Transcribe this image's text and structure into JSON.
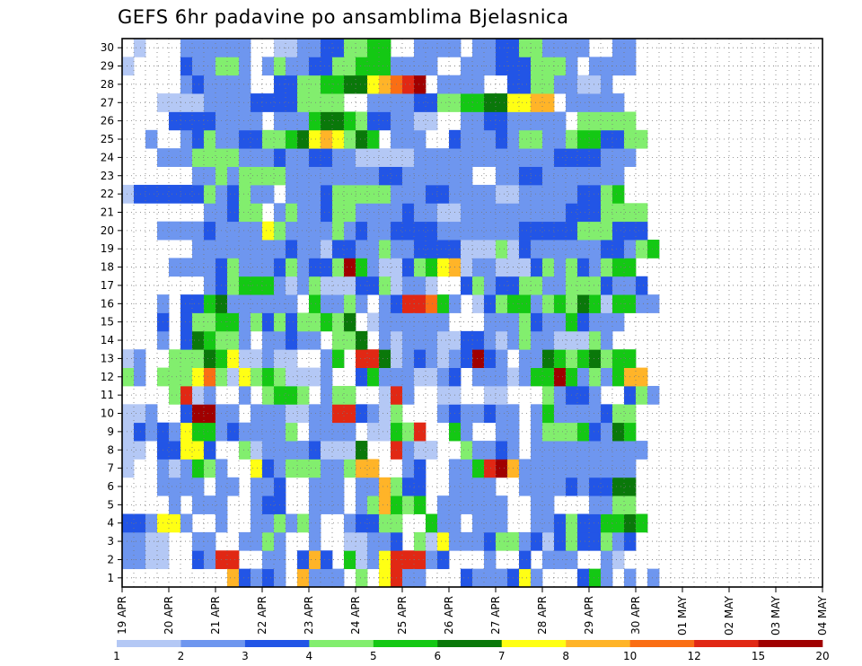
{
  "chart_data": {
    "type": "heatmap",
    "title": "GEFS 6hr padavine po ansamblima Bjelasnica",
    "xlabel": "",
    "ylabel": "",
    "x_tick_labels": [
      "19 APR",
      "20 APR",
      "21 APR",
      "22 APR",
      "23 APR",
      "24 APR",
      "25 APR",
      "26 APR",
      "27 APR",
      "28 APR",
      "29 APR",
      "30 APR",
      "01 MAY",
      "02 MAY",
      "03 MAY",
      "04 MAY"
    ],
    "y_tick_labels": [
      "1",
      "2",
      "3",
      "4",
      "5",
      "6",
      "7",
      "8",
      "9",
      "10",
      "11",
      "12",
      "13",
      "14",
      "15",
      "16",
      "17",
      "18",
      "19",
      "20",
      "21",
      "22",
      "23",
      "24",
      "25",
      "26",
      "27",
      "28",
      "29",
      "30"
    ],
    "grid": "dotted",
    "time_steps_per_day": 4,
    "days": 15,
    "members": 30,
    "color_levels": {
      "bounds": [
        1,
        2,
        3,
        4,
        5,
        6,
        7,
        8,
        10,
        12,
        15,
        20
      ],
      "labels": [
        "1",
        "2",
        "3",
        "4",
        "5",
        "6",
        "7",
        "8",
        "10",
        "12",
        "15",
        "20"
      ],
      "colors": [
        "#b4c8f5",
        "#6e96ef",
        "#2255e6",
        "#82ee6e",
        "#14c814",
        "#0a780a",
        "#ffff14",
        "#ffb428",
        "#fa6e14",
        "#e12814",
        "#a00000"
      ]
    },
    "grid_rows": [
      "         HCBCB HBBB D GJBB   CBBBCGB   CEB B B",
      "BBAA  CBJJ  BB CHC EABGJJJBC   B  C BBB  BA",
      "BBAA  BB  BBDB  B  AABBC DAGBBBCDDBCACDCCDBC",
      "CCBGGB  B  BBDBDB  BCCDD  EBB BBB  BBCDCCEEFE",
      "    B BBB  BCC  BBB BDHEDE BBBBBB  BB   BBDD",
      "   BBBB BB BBC  BBB BBHDCC  BBBB  BBBBCBCCFF",
      "A  BABEDB  GCBDDDBBDHH  BC  BBEJKHBBBBBBBBBB",
      "AA CCGGC  DABBBBCAAAF  JBAA  DBBCB BBBBBBBBBB",
      "ACBCBGEEBCBBBBD BBBB AAEDJ  EB  BB BDDDECBFE",
      "AAB  CKKBB BBBAABBJJCBAD   BCBBCBB BEBBBBCDD",
      "    DJAB  B DEED BDD  AJB  AA  AA   DBCCB  CDB",
      "DB DDDGIDAGDEDAAAB  CEBBBAABC BBBABEEKEBDBEHH",
      "AB  DDDFEGAABAA  BE JJFABCBABCKCB BBFEDEFDEE",
      "   B CFEDDB BBCBB DDF BABBBAACCBABDBBAAADB",
      "   C CDDEEBDCDCDDEDF ABBBBBB   BBBDCBBECBBB",
      "   B CCEFBBBBBB EBBDB BCJJIEB ACDEEBDEDFEAEEBB",
      "       BCDEEEBABDAAACCDABBA  CDBCCDDBBDDDCBBC",
      "    BBBBCDBBBCDBCCDKEBAACDEGHABBAAACDBDCBDEE",
      "      BBBBBBBBCBBACCBBDBBCCCCAAADACBBBBBBCCBDE",
      "   BBBBCBBBBGDBBBBDBCBBCCCCBBBBBBBCCCCCDDDCCC",
      "       BBCDD BDBBCDDBBBBCBBAABBBBBBBBBCCCDDDD",
      "ACCCCCCDBCDBB BBBCDDDDDBBBCCBBBBAABBBBBCCDE",
      "      BBDBDDDDBBBBBBBBCCBBBBBB  BBCCBBBBBBB",
      "   BBBDDDDBBBCBBCCBBAAAAABBBBBBBBBBBBCCCCBBB",
      "  B  BCDBBCCDDEFGHGDFE BBB  CBBBCBDDBBDEECCDD",
      "    CCCCBBBB BBBEFFEDCCBBAA  BBCCBBBBB DDDDD",
      "   AAAABBBBCCCCDDDD  BBBBCCDDEEFFGGHH BBBBB",
      "     BCBBBB  CCDDEEFFGHIJK BBBB  CCDDBBAAB",
      "A    CBBDDB BDBBCCDDEEEBBBB  BBBCCCDDDB BBBB",
      " A   BBBBBB  AABBCCDDEE  BBBB BBCCDDBBBB  BB"
    ]
  }
}
